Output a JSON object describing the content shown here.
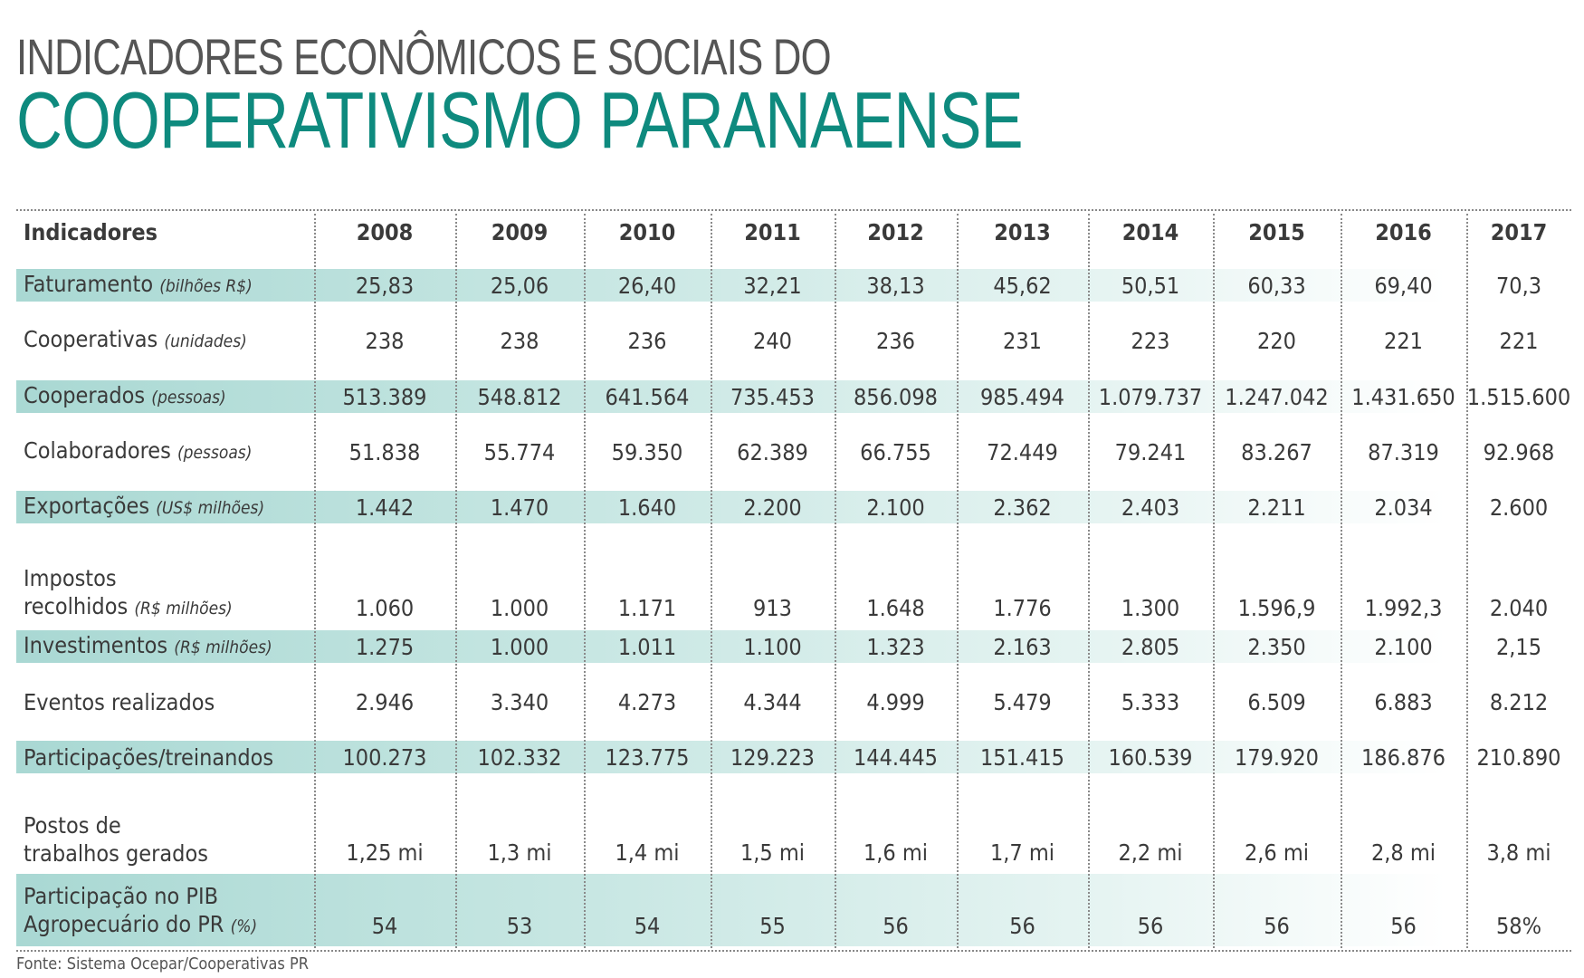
{
  "title_line1": "INDICADORES ECONÔMICOS E SOCIAIS DO",
  "title_line2": "COOPERATIVISMO PARANAENSE",
  "header": {
    "label": "Indicadores",
    "years": [
      "2008",
      "2009",
      "2010",
      "2011",
      "2012",
      "2013",
      "2014",
      "2015",
      "2016",
      "2017"
    ]
  },
  "rows": [
    {
      "label": "Faturamento",
      "unit": "(bilhões R$)",
      "shaded": true,
      "values": [
        "25,83",
        "25,06",
        "26,40",
        "32,21",
        "38,13",
        "45,62",
        "50,51",
        "60,33",
        "69,40",
        "70,3"
      ]
    },
    {
      "label": "Cooperativas",
      "unit": "(unidades)",
      "shaded": false,
      "values": [
        "238",
        "238",
        "236",
        "240",
        "236",
        "231",
        "223",
        "220",
        "221",
        "221"
      ]
    },
    {
      "label": "Cooperados",
      "unit": "(pessoas)",
      "shaded": true,
      "values": [
        "513.389",
        "548.812",
        "641.564",
        "735.453",
        "856.098",
        "985.494",
        "1.079.737",
        "1.247.042",
        "1.431.650",
        "1.515.600"
      ]
    },
    {
      "label": "Colaboradores",
      "unit": "(pessoas)",
      "shaded": false,
      "values": [
        "51.838",
        "55.774",
        "59.350",
        "62.389",
        "66.755",
        "72.449",
        "79.241",
        "83.267",
        "87.319",
        "92.968"
      ]
    },
    {
      "label": "Exportações",
      "unit": "(US$ milhões)",
      "shaded": true,
      "values": [
        "1.442",
        "1.470",
        "1.640",
        "2.200",
        "2.100",
        "2.362",
        "2.403",
        "2.211",
        "2.034",
        "2.600"
      ]
    },
    {
      "label": "Impostos",
      "label2": "recolhidos",
      "unit": "(R$ milhões)",
      "shaded": false,
      "values": [
        "1.060",
        "1.000",
        "1.171",
        "913",
        "1.648",
        "1.776",
        "1.300",
        "1.596,9",
        "1.992,3",
        "2.040"
      ]
    },
    {
      "label": "Investimentos",
      "unit": "(R$ milhões)",
      "shaded": true,
      "values": [
        "1.275",
        "1.000",
        "1.011",
        "1.100",
        "1.323",
        "2.163",
        "2.805",
        "2.350",
        "2.100",
        "2,15"
      ]
    },
    {
      "label": "Eventos realizados",
      "unit": "",
      "shaded": false,
      "values": [
        "2.946",
        "3.340",
        "4.273",
        "4.344",
        "4.999",
        "5.479",
        "5.333",
        "6.509",
        "6.883",
        "8.212"
      ]
    },
    {
      "label": "Participações/treinandos",
      "unit": "",
      "shaded": true,
      "values": [
        "100.273",
        "102.332",
        "123.775",
        "129.223",
        "144.445",
        "151.415",
        "160.539",
        "179.920",
        "186.876",
        "210.890"
      ]
    },
    {
      "label": "Postos de",
      "label2": "trabalhos gerados",
      "unit": "",
      "shaded": false,
      "values": [
        "1,25 mi",
        "1,3 mi",
        "1,4 mi",
        "1,5 mi",
        "1,6 mi",
        "1,7 mi",
        "2,2 mi",
        "2,6 mi",
        "2,8 mi",
        "3,8 mi"
      ]
    },
    {
      "label": "Participação no PIB",
      "label2": "Agropecuário do PR",
      "unit": "(%)",
      "shaded": true,
      "values": [
        "54",
        "53",
        "54",
        "55",
        "56",
        "56",
        "56",
        "56",
        "56",
        "58%"
      ]
    }
  ],
  "source": "Fonte: Sistema Ocepar/Cooperativas PR"
}
